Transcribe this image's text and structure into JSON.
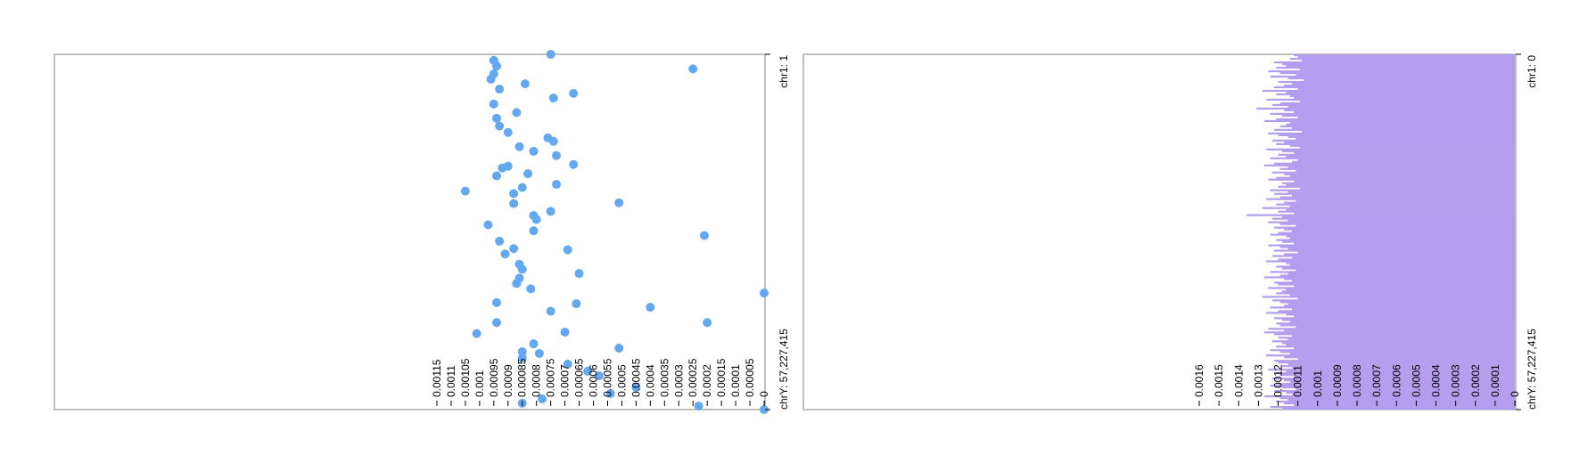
{
  "tracks": [
    {
      "genomic_start_label": "chr1: 1",
      "genomic_end_label": "chrY: 57,227,415",
      "value_tick_labels": [
        "0.00115",
        "0.0011",
        "0.00105",
        "0.001",
        "0.00095",
        "0.0009",
        "0.00085",
        "0.0008",
        "0.00075",
        "0.0007",
        "0.00065",
        "0.0006",
        "0.00055",
        "0.0005",
        "0.00045",
        "0.0004",
        "0.00035",
        "0.0003",
        "0.00025",
        "0.0002",
        "0.00015",
        "0.0001",
        "0.00005",
        "0"
      ]
    },
    {
      "genomic_start_label": "chr1: 0",
      "genomic_end_label": "chrY: 57,227,415",
      "value_tick_labels": [
        "0.0016",
        "0.0015",
        "0.0014",
        "0.0013",
        "0.0012",
        "0.0011",
        "0.001",
        "0.0009",
        "0.0008",
        "0.0007",
        "0.0006",
        "0.0005",
        "0.0004",
        "0.0003",
        "0.0002",
        "0.0001",
        "0"
      ]
    }
  ],
  "chart_data": [
    {
      "type": "scatter",
      "orientation": "vertical genome axis (top to bottom), values increase to the left",
      "point_color": "#64a8f0",
      "value_axis": {
        "min": 0,
        "max": 0.00115,
        "ticks": [
          0.00115,
          0.0011,
          0.00105,
          0.001,
          0.00095,
          0.0009,
          0.00085,
          0.0008,
          0.00075,
          0.0007,
          0.00065,
          0.0006,
          0.00055,
          0.0005,
          0.00045,
          0.0004,
          0.00035,
          0.0003,
          0.00025,
          0.0002,
          0.00015,
          0.0001,
          5e-05,
          0
        ]
      },
      "genome_axis": {
        "start": 1,
        "end": 57227415,
        "start_label": "chr1: 1",
        "end_label": "chrY: 57,227,415"
      },
      "points": [
        {
          "pos": 0.0,
          "value": 0.00075
        },
        {
          "pos": 0.017,
          "value": 0.00095
        },
        {
          "pos": 0.033,
          "value": 0.00094
        },
        {
          "pos": 0.041,
          "value": 0.00025
        },
        {
          "pos": 0.055,
          "value": 0.00095
        },
        {
          "pos": 0.07,
          "value": 0.00096
        },
        {
          "pos": 0.083,
          "value": 0.00084
        },
        {
          "pos": 0.098,
          "value": 0.00093
        },
        {
          "pos": 0.11,
          "value": 0.00067
        },
        {
          "pos": 0.123,
          "value": 0.00074
        },
        {
          "pos": 0.14,
          "value": 0.00095
        },
        {
          "pos": 0.164,
          "value": 0.00087
        },
        {
          "pos": 0.18,
          "value": 0.00094
        },
        {
          "pos": 0.202,
          "value": 0.00093
        },
        {
          "pos": 0.22,
          "value": 0.0009
        },
        {
          "pos": 0.235,
          "value": 0.00076
        },
        {
          "pos": 0.245,
          "value": 0.00074
        },
        {
          "pos": 0.26,
          "value": 0.00086
        },
        {
          "pos": 0.273,
          "value": 0.00081
        },
        {
          "pos": 0.285,
          "value": 0.00073
        },
        {
          "pos": 0.31,
          "value": 0.00067
        },
        {
          "pos": 0.315,
          "value": 0.0009
        },
        {
          "pos": 0.32,
          "value": 0.00092
        },
        {
          "pos": 0.342,
          "value": 0.00094
        },
        {
          "pos": 0.336,
          "value": 0.00083
        },
        {
          "pos": 0.366,
          "value": 0.00073
        },
        {
          "pos": 0.375,
          "value": 0.00085
        },
        {
          "pos": 0.385,
          "value": 0.00105
        },
        {
          "pos": 0.392,
          "value": 0.00088
        },
        {
          "pos": 0.42,
          "value": 0.00088
        },
        {
          "pos": 0.418,
          "value": 0.00051
        },
        {
          "pos": 0.442,
          "value": 0.00075
        },
        {
          "pos": 0.454,
          "value": 0.00081
        },
        {
          "pos": 0.465,
          "value": 0.0008
        },
        {
          "pos": 0.48,
          "value": 0.00097
        },
        {
          "pos": 0.497,
          "value": 0.00081
        },
        {
          "pos": 0.51,
          "value": 0.00021
        },
        {
          "pos": 0.526,
          "value": 0.00093
        },
        {
          "pos": 0.547,
          "value": 0.00088
        },
        {
          "pos": 0.562,
          "value": 0.00091
        },
        {
          "pos": 0.55,
          "value": 0.00069
        },
        {
          "pos": 0.591,
          "value": 0.00086
        },
        {
          "pos": 0.605,
          "value": 0.00085
        },
        {
          "pos": 0.63,
          "value": 0.00086
        },
        {
          "pos": 0.617,
          "value": 0.00065
        },
        {
          "pos": 0.645,
          "value": 0.00087
        },
        {
          "pos": 0.66,
          "value": 0.00082
        },
        {
          "pos": 0.672,
          "value": 0.0
        },
        {
          "pos": 0.699,
          "value": 0.00094
        },
        {
          "pos": 0.702,
          "value": 0.00066
        },
        {
          "pos": 0.712,
          "value": 0.0004
        },
        {
          "pos": 0.723,
          "value": 0.00075
        },
        {
          "pos": 0.755,
          "value": 0.00094
        },
        {
          "pos": 0.786,
          "value": 0.00101
        },
        {
          "pos": 0.755,
          "value": 0.0002
        },
        {
          "pos": 0.782,
          "value": 0.0007
        },
        {
          "pos": 0.815,
          "value": 0.00081
        },
        {
          "pos": 0.827,
          "value": 0.00051
        },
        {
          "pos": 0.837,
          "value": 0.00085
        },
        {
          "pos": 0.842,
          "value": 0.00079
        },
        {
          "pos": 0.855,
          "value": 0.00085
        },
        {
          "pos": 0.872,
          "value": 0.00069
        },
        {
          "pos": 0.892,
          "value": 0.00062
        },
        {
          "pos": 0.905,
          "value": 0.00058
        },
        {
          "pos": 0.937,
          "value": 0.00045
        },
        {
          "pos": 0.955,
          "value": 0.00054
        },
        {
          "pos": 0.97,
          "value": 0.00078
        },
        {
          "pos": 0.982,
          "value": 0.00085
        },
        {
          "pos": 0.99,
          "value": 0.00023
        },
        {
          "pos": 1.0,
          "value": 0.0
        }
      ]
    },
    {
      "type": "bar",
      "orientation": "horizontal bars along a vertical genome axis (top to bottom), values increase to the left",
      "bar_color": "#b39dee",
      "value_axis": {
        "min": 0,
        "max": 0.0016,
        "ticks": [
          0.0016,
          0.0015,
          0.0014,
          0.0013,
          0.0012,
          0.0011,
          0.001,
          0.0009,
          0.0008,
          0.0007,
          0.0006,
          0.0005,
          0.0004,
          0.0003,
          0.0002,
          0.0001,
          0
        ]
      },
      "genome_axis": {
        "start": 0,
        "end": 57227415,
        "start_label": "chr1: 0",
        "end_label": "chrY: 57,227,415"
      },
      "bin_count": 200,
      "values": [
        0.00112,
        0.0011,
        0.00114,
        0.00108,
        0.00122,
        0.00118,
        0.00116,
        0.00121,
        0.00109,
        0.00125,
        0.00119,
        0.00111,
        0.00124,
        0.00115,
        0.00107,
        0.0012,
        0.00113,
        0.00117,
        0.00122,
        0.0011,
        0.00128,
        0.00116,
        0.00121,
        0.00114,
        0.00112,
        0.00126,
        0.00109,
        0.00119,
        0.00123,
        0.00115,
        0.00131,
        0.00117,
        0.00112,
        0.00124,
        0.00118,
        0.0011,
        0.00121,
        0.00127,
        0.00114,
        0.00116,
        0.00119,
        0.00113,
        0.00122,
        0.00108,
        0.00125,
        0.0012,
        0.00115,
        0.00111,
        0.00123,
        0.00117,
        0.00121,
        0.00114,
        0.00109,
        0.00126,
        0.00118,
        0.00112,
        0.0012,
        0.00116,
        0.00124,
        0.0011,
        0.00113,
        0.00122,
        0.00127,
        0.00115,
        0.00119,
        0.00111,
        0.00123,
        0.00117,
        0.00114,
        0.00121,
        0.00125,
        0.00112,
        0.00118,
        0.00116,
        0.0012,
        0.00109,
        0.00124,
        0.00115,
        0.00122,
        0.00113,
        0.00119,
        0.00126,
        0.00111,
        0.00117,
        0.00121,
        0.00114,
        0.00128,
        0.00116,
        0.0012,
        0.00112,
        0.00136,
        0.00118,
        0.00123,
        0.00115,
        0.00125,
        0.00119,
        0.00111,
        0.00122,
        0.00117,
        0.00113,
        0.0012,
        0.00124,
        0.00116,
        0.00114,
        0.00121,
        0.00118,
        0.00112,
        0.00125,
        0.00119,
        0.00115,
        0.00122,
        0.0011,
        0.00117,
        0.00123,
        0.00113,
        0.0012,
        0.00126,
        0.00116,
        0.00114,
        0.00121,
        0.00118,
        0.00111,
        0.00124,
        0.00115,
        0.00119,
        0.00127,
        0.00117,
        0.00113,
        0.00122,
        0.0012,
        0.00112,
        0.00125,
        0.00116,
        0.00118,
        0.00121,
        0.00114,
        0.00128,
        0.0011,
        0.00123,
        0.00119,
        0.00115,
        0.00117,
        0.00124,
        0.00113,
        0.0012,
        0.00126,
        0.00116,
        0.00112,
        0.00122,
        0.00118,
        0.00114,
        0.00121,
        0.00119,
        0.00111,
        0.00125,
        0.00117,
        0.00127,
        0.00122,
        0.00113,
        0.0012,
        0.00115,
        0.00123,
        0.00118,
        0.00116,
        0.00121,
        0.00112,
        0.00124,
        0.00119,
        0.00114,
        0.00126,
        0.00117,
        0.0011,
        0.00122,
        0.0012,
        0.00115,
        0.00118,
        0.00113,
        0.00125,
        0.00116,
        0.00121,
        0.00119,
        0.00112,
        0.00123,
        0.00117,
        0.00114,
        0.0012,
        0.00124,
        0.00118,
        0.00111,
        0.00122,
        0.00116,
        0.00113,
        0.00127,
        0.00119,
        0.00115,
        0.00121,
        0.00117,
        0.00112,
        0.00124,
        0.00118
      ]
    }
  ]
}
